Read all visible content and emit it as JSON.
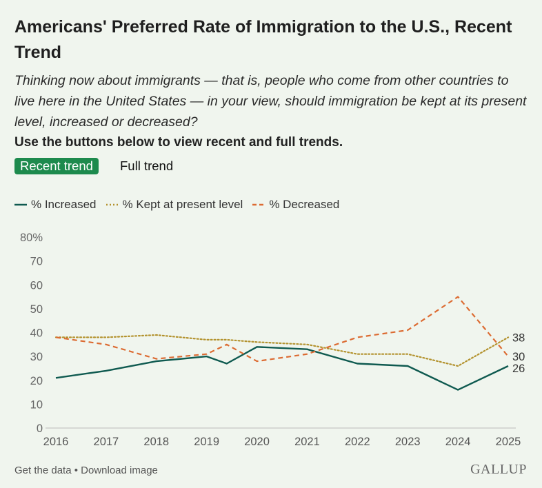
{
  "title": "Americans' Preferred Rate of Immigration to the U.S., Recent Trend",
  "subtitle": "Thinking now about immigrants — that is, people who come from other countries to live here in the United States — in your view, should immigration be kept at its present level, increased or decreased?",
  "instruction": "Use the buttons below to view recent and full trends.",
  "buttons": {
    "recent": "Recent trend",
    "full": "Full trend"
  },
  "footer": {
    "get_data": "Get the data",
    "separator": " • ",
    "download": "Download image"
  },
  "logo": "GALLUP",
  "chart_data": {
    "type": "line",
    "yticks": [
      "80%",
      "70",
      "60",
      "50",
      "40",
      "30",
      "20",
      "10",
      "0"
    ],
    "ylim": [
      0,
      80
    ],
    "xlim": [
      2016,
      2025
    ],
    "xticks": [
      "2016",
      "2017",
      "2018",
      "2019",
      "2020",
      "2021",
      "2022",
      "2023",
      "2024",
      "2025"
    ],
    "legend_position": "top-left",
    "grid": false,
    "series": [
      {
        "name": "% Increased",
        "color": "#0f5a50",
        "style": "solid",
        "end_label": "26",
        "points": [
          [
            2016,
            21
          ],
          [
            2017,
            24
          ],
          [
            2018,
            28
          ],
          [
            2019,
            30
          ],
          [
            2019.4,
            27
          ],
          [
            2020,
            34
          ],
          [
            2021,
            33
          ],
          [
            2022,
            27
          ],
          [
            2023,
            26
          ],
          [
            2024,
            16
          ],
          [
            2025,
            26
          ]
        ]
      },
      {
        "name": "% Kept at present level",
        "color": "#b3922e",
        "style": "dotted",
        "end_label": "38",
        "points": [
          [
            2016,
            38
          ],
          [
            2017,
            38
          ],
          [
            2018,
            39
          ],
          [
            2019,
            37
          ],
          [
            2019.4,
            37
          ],
          [
            2020,
            36
          ],
          [
            2021,
            35
          ],
          [
            2022,
            31
          ],
          [
            2023,
            31
          ],
          [
            2024,
            26
          ],
          [
            2025,
            38
          ]
        ]
      },
      {
        "name": "% Decreased",
        "color": "#dc6b32",
        "style": "dashed",
        "end_label": "30",
        "points": [
          [
            2016,
            38
          ],
          [
            2017,
            35
          ],
          [
            2018,
            29
          ],
          [
            2019,
            31
          ],
          [
            2019.4,
            35
          ],
          [
            2020,
            28
          ],
          [
            2021,
            31
          ],
          [
            2022,
            38
          ],
          [
            2023,
            41
          ],
          [
            2024,
            55
          ],
          [
            2025,
            30
          ]
        ]
      }
    ]
  }
}
